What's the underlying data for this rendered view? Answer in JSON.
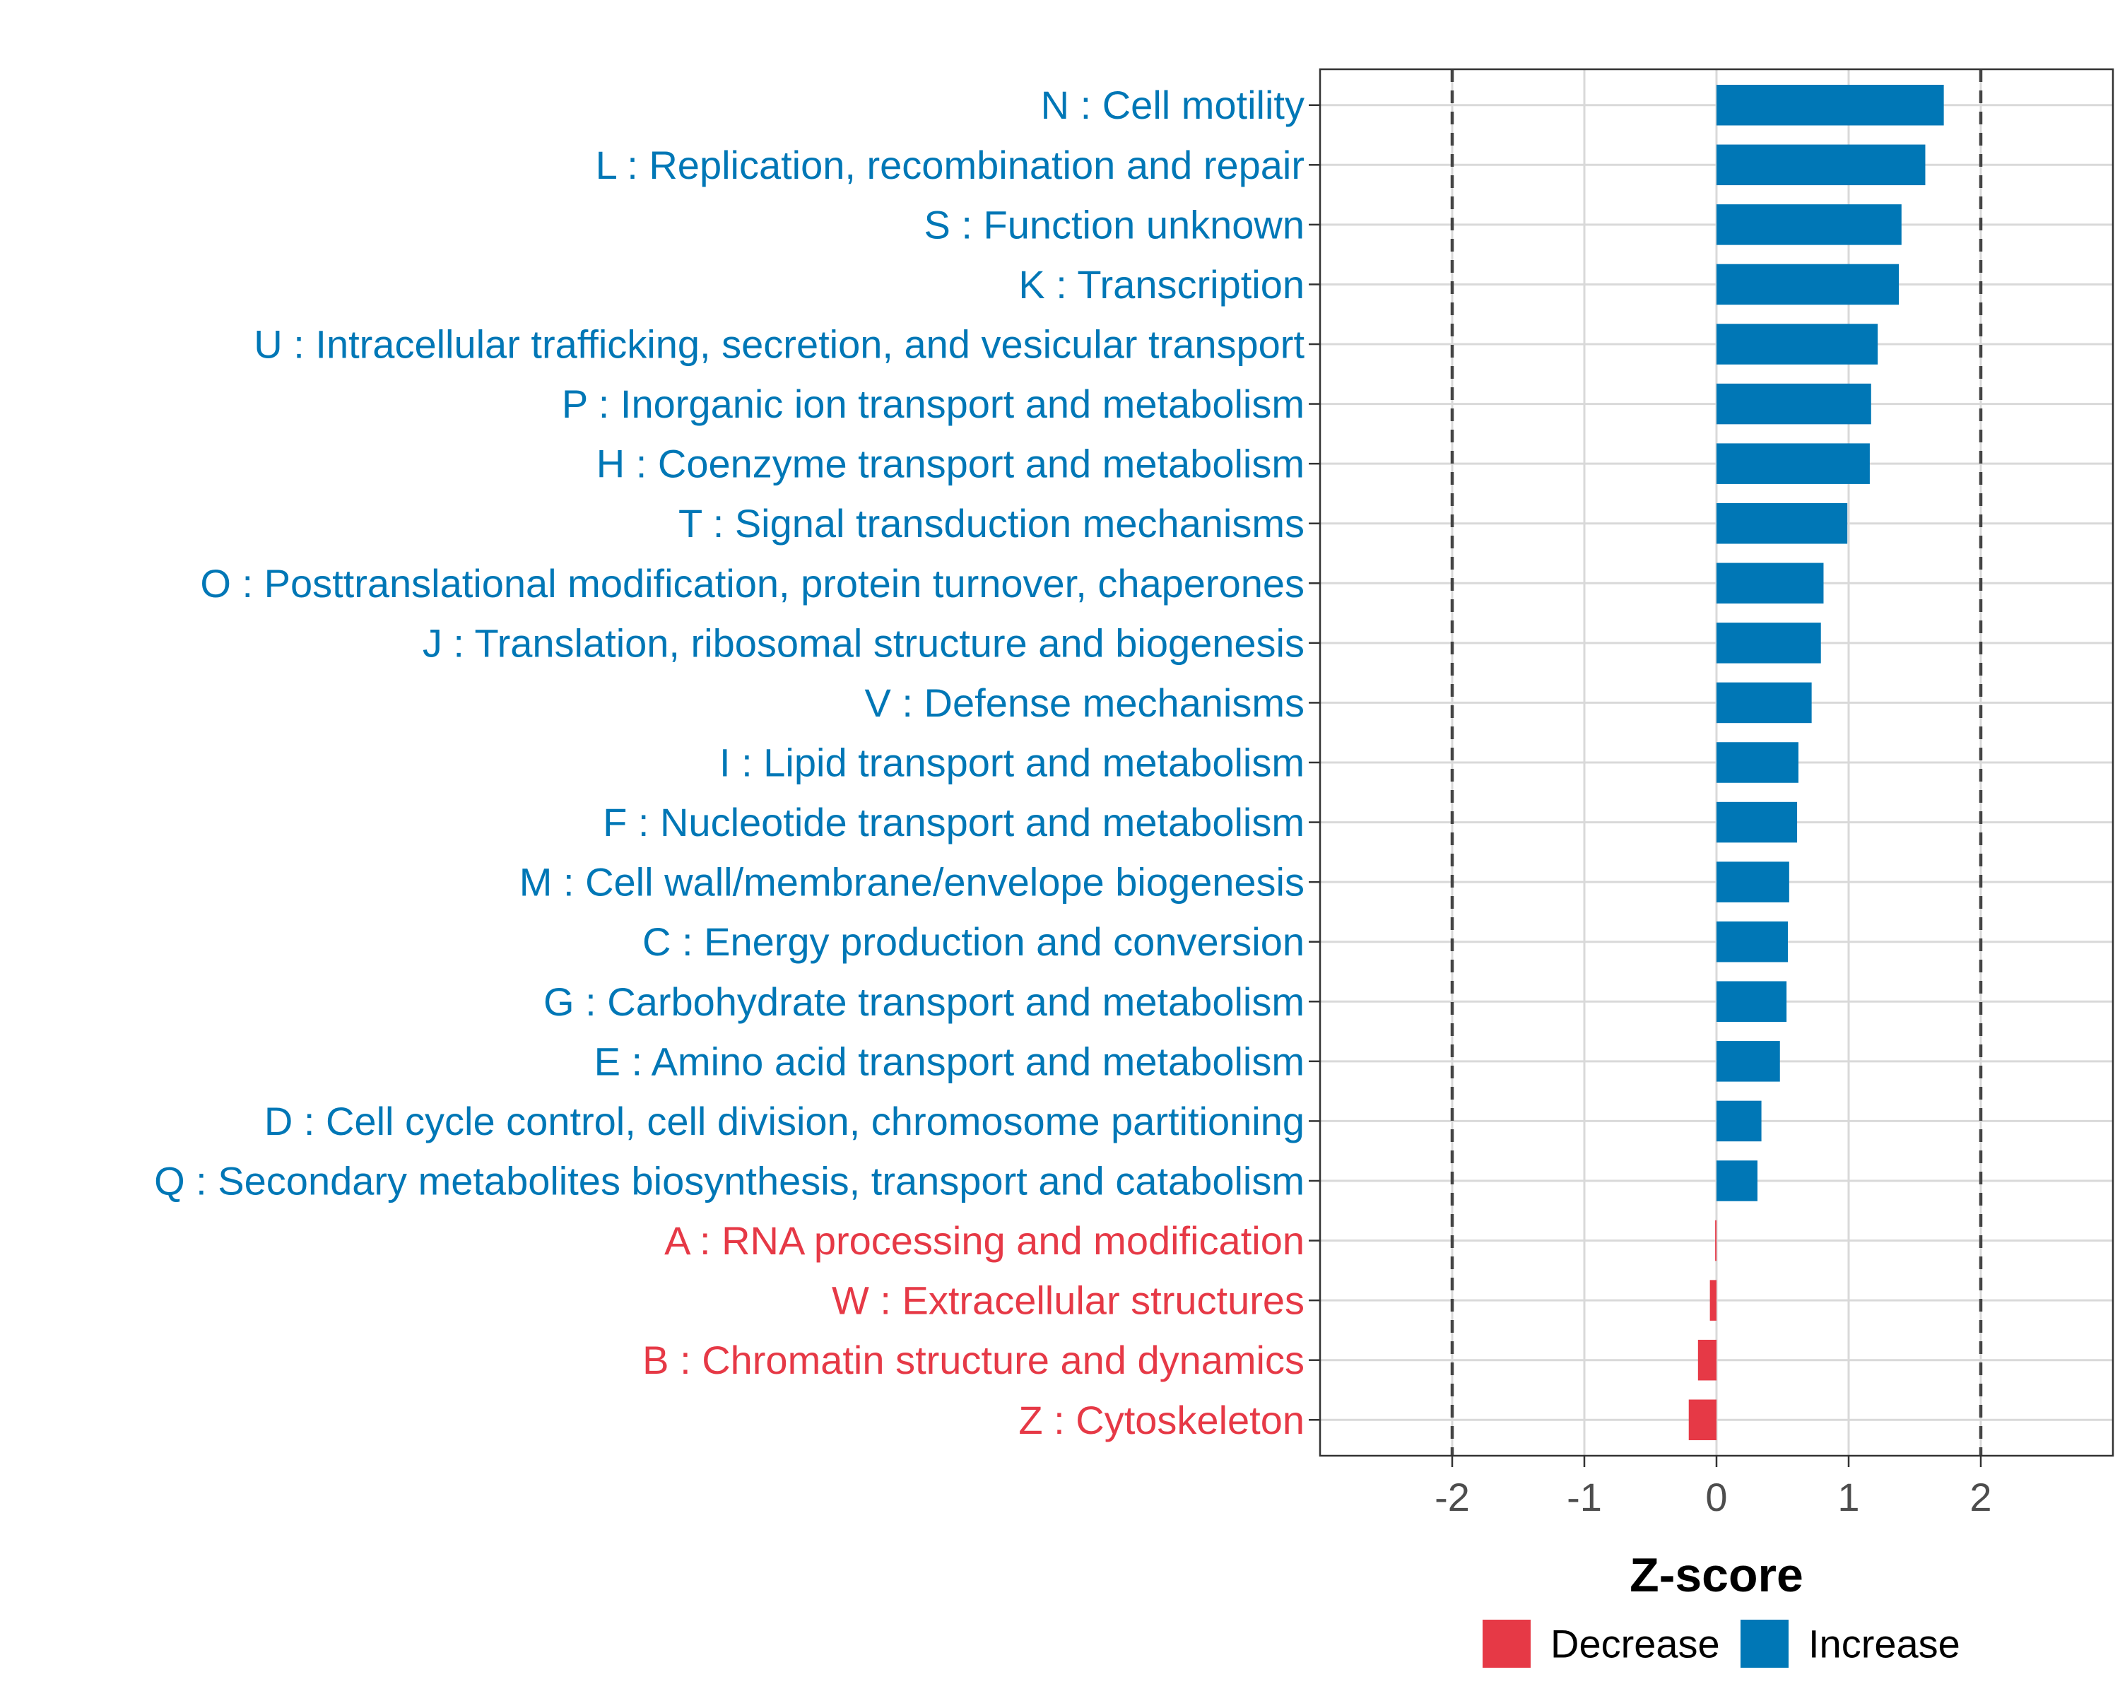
{
  "chart_data": {
    "type": "bar",
    "orientation": "horizontal",
    "xlabel": "Z-score",
    "xlim": [
      -3,
      3
    ],
    "xticks": [
      -2,
      -1,
      0,
      1,
      2
    ],
    "xtick_labels": [
      "-2",
      "-1",
      "0",
      "1",
      "2"
    ],
    "reference_lines": [
      -2,
      2
    ],
    "grid": true,
    "legend_position": "bottom",
    "legend": [
      {
        "key": "decrease",
        "label": "Decrease",
        "color": "#e63946"
      },
      {
        "key": "increase",
        "label": "Increase",
        "color": "#0077b6"
      }
    ],
    "categories": [
      "N : Cell motility",
      "L : Replication, recombination and repair",
      "S : Function unknown",
      "K : Transcription",
      "U : Intracellular trafficking, secretion, and vesicular transport",
      "P : Inorganic ion transport and metabolism",
      "H : Coenzyme transport and metabolism",
      "T : Signal transduction mechanisms",
      "O : Posttranslational modification, protein turnover, chaperones",
      "J : Translation, ribosomal structure and biogenesis",
      "V : Defense mechanisms",
      "I : Lipid transport and metabolism",
      "F : Nucleotide transport and metabolism",
      "M : Cell wall/membrane/envelope biogenesis",
      "C : Energy production and conversion",
      "G : Carbohydrate transport and metabolism",
      "E : Amino acid transport and metabolism",
      "D : Cell cycle control, cell division, chromosome partitioning",
      "Q : Secondary metabolites biosynthesis, transport and catabolism",
      "A : RNA processing and modification",
      "W : Extracellular structures",
      "B : Chromatin structure and dynamics",
      "Z : Cytoskeleton"
    ],
    "values": [
      1.72,
      1.58,
      1.4,
      1.38,
      1.22,
      1.17,
      1.16,
      0.99,
      0.81,
      0.79,
      0.72,
      0.62,
      0.61,
      0.55,
      0.54,
      0.53,
      0.48,
      0.34,
      0.31,
      -0.01,
      -0.05,
      -0.14,
      -0.21
    ],
    "direction": [
      "increase",
      "increase",
      "increase",
      "increase",
      "increase",
      "increase",
      "increase",
      "increase",
      "increase",
      "increase",
      "increase",
      "increase",
      "increase",
      "increase",
      "increase",
      "increase",
      "increase",
      "increase",
      "increase",
      "decrease",
      "decrease",
      "decrease",
      "decrease"
    ]
  }
}
